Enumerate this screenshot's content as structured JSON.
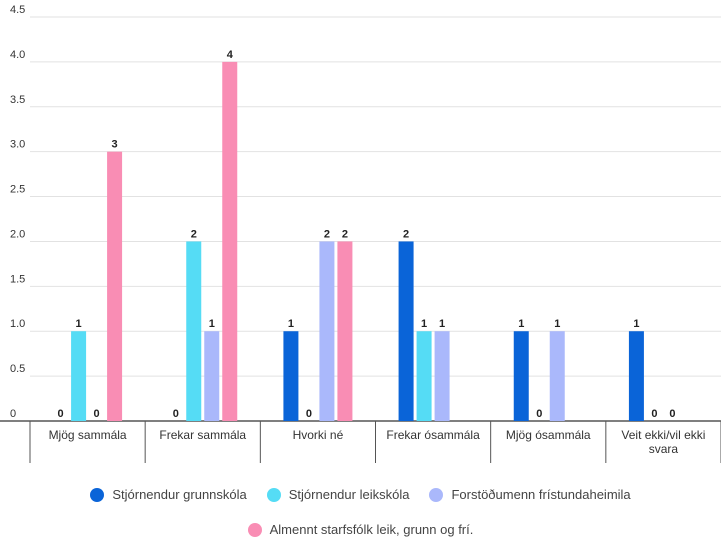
{
  "chart_data": {
    "type": "bar",
    "categories": [
      [
        "Mjög sammála"
      ],
      [
        "Frekar sammála"
      ],
      [
        "Hvorki né"
      ],
      [
        "Frekar ósammála"
      ],
      [
        "Mjög ósammála"
      ],
      [
        "Veit ekki/vil ekki",
        "svara"
      ]
    ],
    "series": [
      {
        "name": "Stjórnendur grunnskóla",
        "color": "#0a64d8",
        "values": [
          0,
          0,
          1,
          2,
          1,
          1
        ]
      },
      {
        "name": "Stjórnendur leikskóla",
        "color": "#55dcf5",
        "values": [
          1,
          2,
          0,
          1,
          0,
          0
        ]
      },
      {
        "name": "Forstöðumenn frístundaheimila",
        "color": "#aab8fb",
        "values": [
          0,
          1,
          2,
          1,
          1,
          0
        ]
      },
      {
        "name": "Almennt starfsfólk leik, grunn og frí.",
        "color": "#f98db4",
        "values": [
          3,
          4,
          2,
          null,
          null,
          null
        ]
      }
    ],
    "ylim": [
      0,
      4.5
    ],
    "yticks": [
      "0",
      "0.5",
      "1.0",
      "1.5",
      "2.0",
      "2.5",
      "3.0",
      "3.5",
      "4.0",
      "4.5"
    ],
    "grid": true,
    "legend_position": "bottom"
  }
}
